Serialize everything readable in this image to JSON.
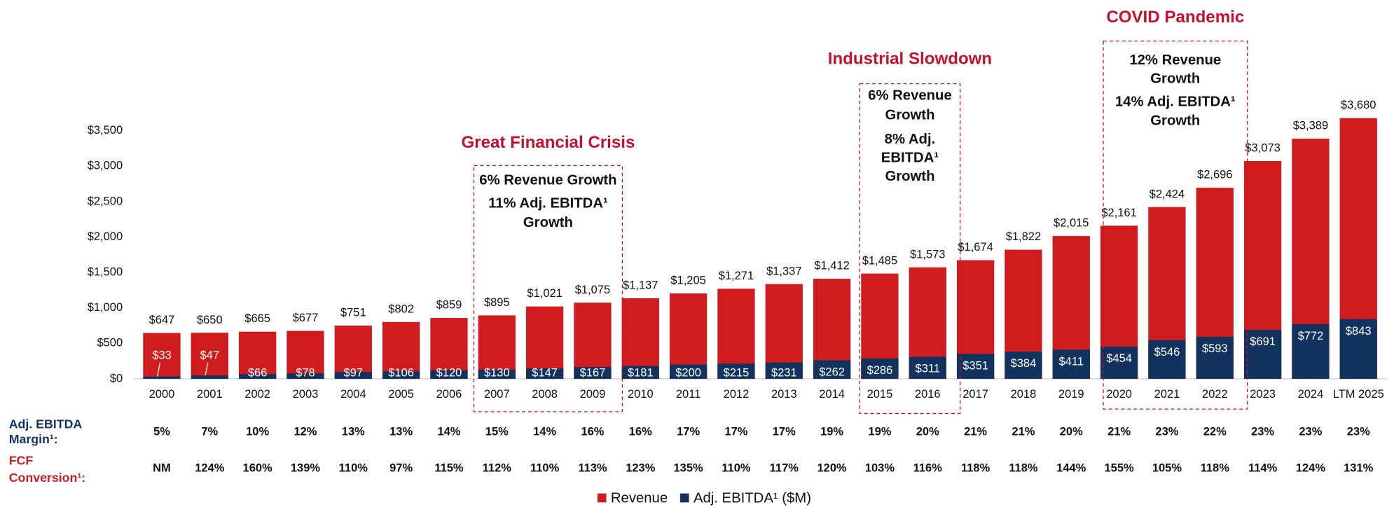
{
  "chart_data": {
    "type": "bar",
    "categories": [
      "2000",
      "2001",
      "2002",
      "2003",
      "2004",
      "2005",
      "2006",
      "2007",
      "2008",
      "2009",
      "2010",
      "2011",
      "2012",
      "2013",
      "2014",
      "2015",
      "2016",
      "2017",
      "2018",
      "2019",
      "2020",
      "2021",
      "2022",
      "2023",
      "2024",
      "LTM 2025"
    ],
    "series": [
      {
        "name": "Revenue",
        "color": "#d01c1f",
        "values": [
          647,
          650,
          665,
          677,
          751,
          802,
          859,
          895,
          1021,
          1075,
          1137,
          1205,
          1271,
          1337,
          1412,
          1485,
          1573,
          1674,
          1822,
          2015,
          2161,
          2424,
          2696,
          3073,
          3389,
          3680
        ],
        "value_labels": [
          "$647",
          "$650",
          "$665",
          "$677",
          "$751",
          "$802",
          "$859",
          "$895",
          "$1,021",
          "$1,075",
          "$1,137",
          "$1,205",
          "$1,271",
          "$1,337",
          "$1,412",
          "$1,485",
          "$1,573",
          "$1,674",
          "$1,822",
          "$2,015",
          "$2,161",
          "$2,424",
          "$2,696",
          "$3,073",
          "$3,389",
          "$3,680"
        ]
      },
      {
        "name": "Adj. EBITDA¹ ($M)",
        "color": "#13335f",
        "values": [
          33,
          47,
          66,
          78,
          97,
          106,
          120,
          130,
          147,
          167,
          181,
          200,
          215,
          231,
          262,
          286,
          311,
          351,
          384,
          411,
          454,
          546,
          593,
          691,
          772,
          843
        ],
        "value_labels": [
          "$33",
          "$47",
          "$66",
          "$78",
          "$97",
          "$106",
          "$120",
          "$130",
          "$147",
          "$167",
          "$181",
          "$200",
          "$215",
          "$231",
          "$262",
          "$286",
          "$311",
          "$351",
          "$384",
          "$411",
          "$454",
          "$546",
          "$593",
          "$691",
          "$772",
          "$843"
        ]
      }
    ],
    "ylim": [
      0,
      3700
    ],
    "yticks": [
      {
        "value": 0,
        "label": "$0"
      },
      {
        "value": 500,
        "label": "$500"
      },
      {
        "value": 1000,
        "label": "$1,000"
      },
      {
        "value": 1500,
        "label": "$1,500"
      },
      {
        "value": 2000,
        "label": "$2,000"
      },
      {
        "value": 2500,
        "label": "$2,500"
      },
      {
        "value": 3000,
        "label": "$3,000"
      },
      {
        "value": 3500,
        "label": "$3,500"
      }
    ],
    "annotations": [
      {
        "title": "Great Financial Crisis",
        "lines": [
          "6% Revenue Growth",
          "11% Adj. EBITDA¹",
          "Growth"
        ]
      },
      {
        "title": "Industrial Slowdown",
        "lines": [
          "6% Revenue",
          "Growth",
          "8% Adj.",
          "EBITDA¹",
          "Growth"
        ]
      },
      {
        "title": "COVID Pandemic",
        "lines": [
          "12% Revenue",
          "Growth",
          "14% Adj. EBITDA¹",
          "Growth"
        ]
      }
    ],
    "rows": [
      {
        "label": [
          "Adj. EBITDA",
          "Margin¹:"
        ],
        "color": "#13335f",
        "values": [
          "5%",
          "7%",
          "10%",
          "12%",
          "13%",
          "13%",
          "14%",
          "15%",
          "14%",
          "16%",
          "16%",
          "17%",
          "17%",
          "17%",
          "19%",
          "19%",
          "20%",
          "21%",
          "21%",
          "20%",
          "21%",
          "23%",
          "22%",
          "23%",
          "23%",
          "23%"
        ]
      },
      {
        "label": [
          "FCF",
          "Conversion¹:"
        ],
        "color": "#d01c1f",
        "values": [
          "NM",
          "124%",
          "160%",
          "139%",
          "110%",
          "97%",
          "115%",
          "112%",
          "110%",
          "113%",
          "123%",
          "135%",
          "110%",
          "117%",
          "120%",
          "103%",
          "116%",
          "118%",
          "118%",
          "144%",
          "155%",
          "105%",
          "118%",
          "114%",
          "124%",
          "131%"
        ]
      }
    ]
  }
}
